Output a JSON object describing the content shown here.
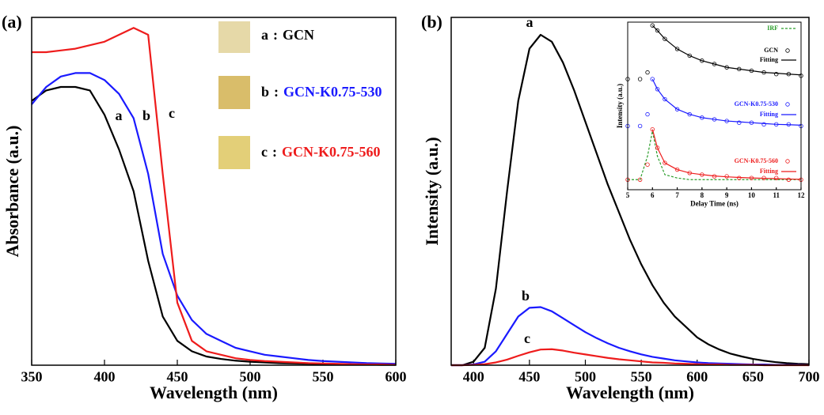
{
  "chart_data": [
    {
      "type": "line",
      "panel_label": "(a)",
      "xlabel": "Wavelength (nm)",
      "ylabel": "Absorbance (a.u.)",
      "xlim": [
        350,
        600
      ],
      "xticks": [
        350,
        400,
        450,
        500,
        550,
        600
      ],
      "ylim": [
        0,
        1
      ],
      "legend_separator": ":",
      "x": [
        350,
        360,
        370,
        380,
        390,
        400,
        410,
        420,
        430,
        440,
        450,
        460,
        470,
        480,
        490,
        500,
        510,
        520,
        530,
        540,
        550,
        560,
        570,
        580,
        590,
        600
      ],
      "series": [
        {
          "label": "a",
          "name": "GCN",
          "color": "#000000",
          "values": [
            0.76,
            0.79,
            0.8,
            0.8,
            0.79,
            0.72,
            0.62,
            0.5,
            0.3,
            0.14,
            0.07,
            0.04,
            0.025,
            0.018,
            0.013,
            0.01,
            0.008,
            0.006,
            0.005,
            0.004,
            0.003,
            0.003,
            0.002,
            0.002,
            0.001,
            0.001
          ]
        },
        {
          "label": "b",
          "name": "GCN-K0.75-530",
          "color": "#1a1aff",
          "values": [
            0.75,
            0.8,
            0.83,
            0.84,
            0.84,
            0.82,
            0.78,
            0.71,
            0.55,
            0.32,
            0.2,
            0.13,
            0.09,
            0.07,
            0.05,
            0.04,
            0.03,
            0.025,
            0.02,
            0.015,
            0.012,
            0.01,
            0.008,
            0.006,
            0.005,
            0.004
          ]
        },
        {
          "label": "c",
          "name": "GCN-K0.75-560",
          "color": "#ee1c1c",
          "values": [
            0.9,
            0.9,
            0.905,
            0.91,
            0.92,
            0.93,
            0.95,
            0.97,
            0.95,
            0.55,
            0.18,
            0.07,
            0.04,
            0.03,
            0.02,
            0.015,
            0.012,
            0.01,
            0.008,
            0.006,
            0.005,
            0.004,
            0.003,
            0.002,
            0.002,
            0.001
          ]
        }
      ]
    },
    {
      "type": "line",
      "panel_label": "(b)",
      "xlabel": "Wavelength (nm)",
      "ylabel": "Intensity (a.u.)",
      "xlim": [
        380,
        700
      ],
      "xticks": [
        400,
        450,
        500,
        550,
        600,
        650,
        700
      ],
      "ylim": [
        0,
        1
      ],
      "x": [
        380,
        390,
        400,
        410,
        420,
        430,
        440,
        450,
        460,
        470,
        480,
        490,
        500,
        510,
        520,
        530,
        540,
        550,
        560,
        570,
        580,
        590,
        600,
        610,
        620,
        630,
        640,
        650,
        660,
        670,
        680,
        690,
        700
      ],
      "series": [
        {
          "label": "a",
          "color": "#000000",
          "values": [
            0,
            0,
            0.01,
            0.05,
            0.22,
            0.5,
            0.76,
            0.91,
            0.95,
            0.93,
            0.87,
            0.79,
            0.7,
            0.61,
            0.52,
            0.44,
            0.36,
            0.29,
            0.23,
            0.18,
            0.14,
            0.11,
            0.08,
            0.06,
            0.045,
            0.033,
            0.025,
            0.018,
            0.013,
            0.009,
            0.006,
            0.004,
            0.003
          ]
        },
        {
          "label": "b",
          "color": "#1a1aff",
          "values": [
            0,
            0,
            0.002,
            0.01,
            0.04,
            0.09,
            0.14,
            0.165,
            0.167,
            0.155,
            0.135,
            0.115,
            0.095,
            0.078,
            0.063,
            0.05,
            0.04,
            0.031,
            0.024,
            0.019,
            0.014,
            0.011,
            0.008,
            0.006,
            0.005,
            0.004,
            0.003,
            0.002,
            0.002,
            0.001,
            0.001,
            0.001,
            0
          ]
        },
        {
          "label": "c",
          "color": "#ee1c1c",
          "values": [
            0,
            0,
            0.001,
            0.003,
            0.008,
            0.016,
            0.027,
            0.037,
            0.045,
            0.046,
            0.042,
            0.036,
            0.031,
            0.026,
            0.021,
            0.017,
            0.014,
            0.011,
            0.008,
            0.007,
            0.005,
            0.004,
            0.003,
            0.002,
            0.002,
            0.001,
            0.001,
            0.001,
            0,
            0,
            0,
            0,
            0
          ]
        }
      ]
    },
    {
      "type": "line",
      "xlabel": "Delay Time (ns)",
      "ylabel": "Intensity (a.u.)",
      "xlim": [
        5,
        12
      ],
      "xticks": [
        5,
        6,
        7,
        8,
        9,
        10,
        11,
        12
      ],
      "ylim": [
        0,
        1
      ],
      "x": [
        5,
        5.5,
        5.8,
        6,
        6.2,
        6.5,
        7,
        7.5,
        8,
        8.5,
        9,
        9.5,
        10,
        10.5,
        11,
        11.5,
        12
      ],
      "series": [
        {
          "name": "IRF",
          "color": "#2a9d2a",
          "style": "line",
          "dash": true,
          "values": [
            0.06,
            0.06,
            0.2,
            0.35,
            0.2,
            0.09,
            0.07,
            0.06,
            0.06,
            0.06,
            0.06,
            0.06,
            0.06,
            0.06,
            0.06,
            0.06,
            0.06
          ]
        },
        {
          "name": "GCN",
          "color": "#000000",
          "style": "markers",
          "values": [
            0.66,
            0.66,
            0.7,
            0.98,
            0.95,
            0.9,
            0.84,
            0.8,
            0.77,
            0.75,
            0.73,
            0.72,
            0.71,
            0.7,
            0.69,
            0.69,
            0.68
          ]
        },
        {
          "name": "Fitting",
          "color": "#000000",
          "style": "line",
          "values": [
            null,
            null,
            null,
            0.98,
            0.95,
            0.9,
            0.84,
            0.8,
            0.77,
            0.75,
            0.73,
            0.72,
            0.71,
            0.7,
            0.695,
            0.69,
            0.685
          ]
        },
        {
          "name": "GCN-K0.75-530",
          "color": "#1a1aff",
          "style": "markers",
          "values": [
            0.38,
            0.38,
            0.45,
            0.66,
            0.6,
            0.54,
            0.48,
            0.45,
            0.43,
            0.42,
            0.41,
            0.4,
            0.4,
            0.39,
            0.39,
            0.39,
            0.38
          ]
        },
        {
          "name": "Fitting",
          "color": "#1a1aff",
          "style": "line",
          "values": [
            null,
            null,
            null,
            0.66,
            0.6,
            0.54,
            0.48,
            0.45,
            0.43,
            0.42,
            0.41,
            0.405,
            0.4,
            0.395,
            0.39,
            0.388,
            0.385
          ]
        },
        {
          "name": "GCN-K0.75-560",
          "color": "#ee1c1c",
          "style": "markers",
          "values": [
            0.06,
            0.06,
            0.15,
            0.36,
            0.25,
            0.16,
            0.12,
            0.1,
            0.09,
            0.08,
            0.08,
            0.07,
            0.07,
            0.07,
            0.07,
            0.06,
            0.06
          ]
        },
        {
          "name": "Fitting",
          "color": "#ee1c1c",
          "style": "line",
          "values": [
            null,
            null,
            null,
            0.36,
            0.25,
            0.16,
            0.12,
            0.1,
            0.09,
            0.082,
            0.077,
            0.073,
            0.07,
            0.068,
            0.066,
            0.064,
            0.062
          ]
        }
      ]
    }
  ]
}
